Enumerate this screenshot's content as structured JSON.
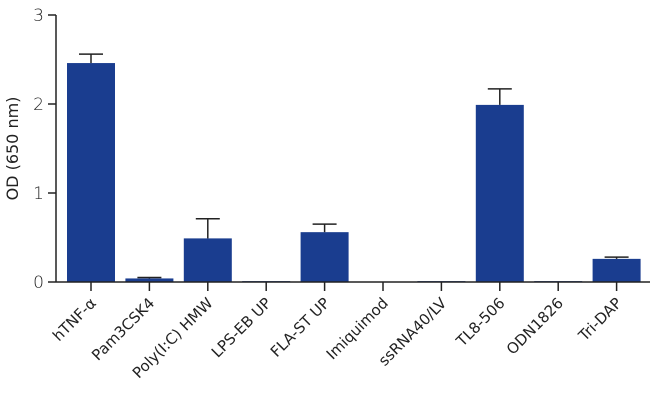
{
  "chart_data": {
    "type": "bar",
    "title": "",
    "xlabel": "",
    "ylabel": "OD (650 nm)",
    "ylim": [
      0,
      3
    ],
    "yticks": [
      0,
      1,
      2,
      3
    ],
    "grid": false,
    "legend": null,
    "bar_color": "#1a3d8f",
    "categories": [
      "hTNF-α",
      "Pam3CSK4",
      "Poly(I:C) HMW",
      "LPS-EB UP",
      "FLA-ST UP",
      "Imiquimod",
      "ssRNA40/LV",
      "TL8-506",
      "ODN1826",
      "Tri-DAP"
    ],
    "values": [
      2.46,
      0.04,
      0.49,
      0.01,
      0.56,
      0.0,
      0.01,
      1.99,
      0.01,
      0.26
    ],
    "error_upper": [
      0.1,
      0.01,
      0.22,
      0.0,
      0.09,
      0.0,
      0.0,
      0.18,
      0.0,
      0.02
    ]
  }
}
